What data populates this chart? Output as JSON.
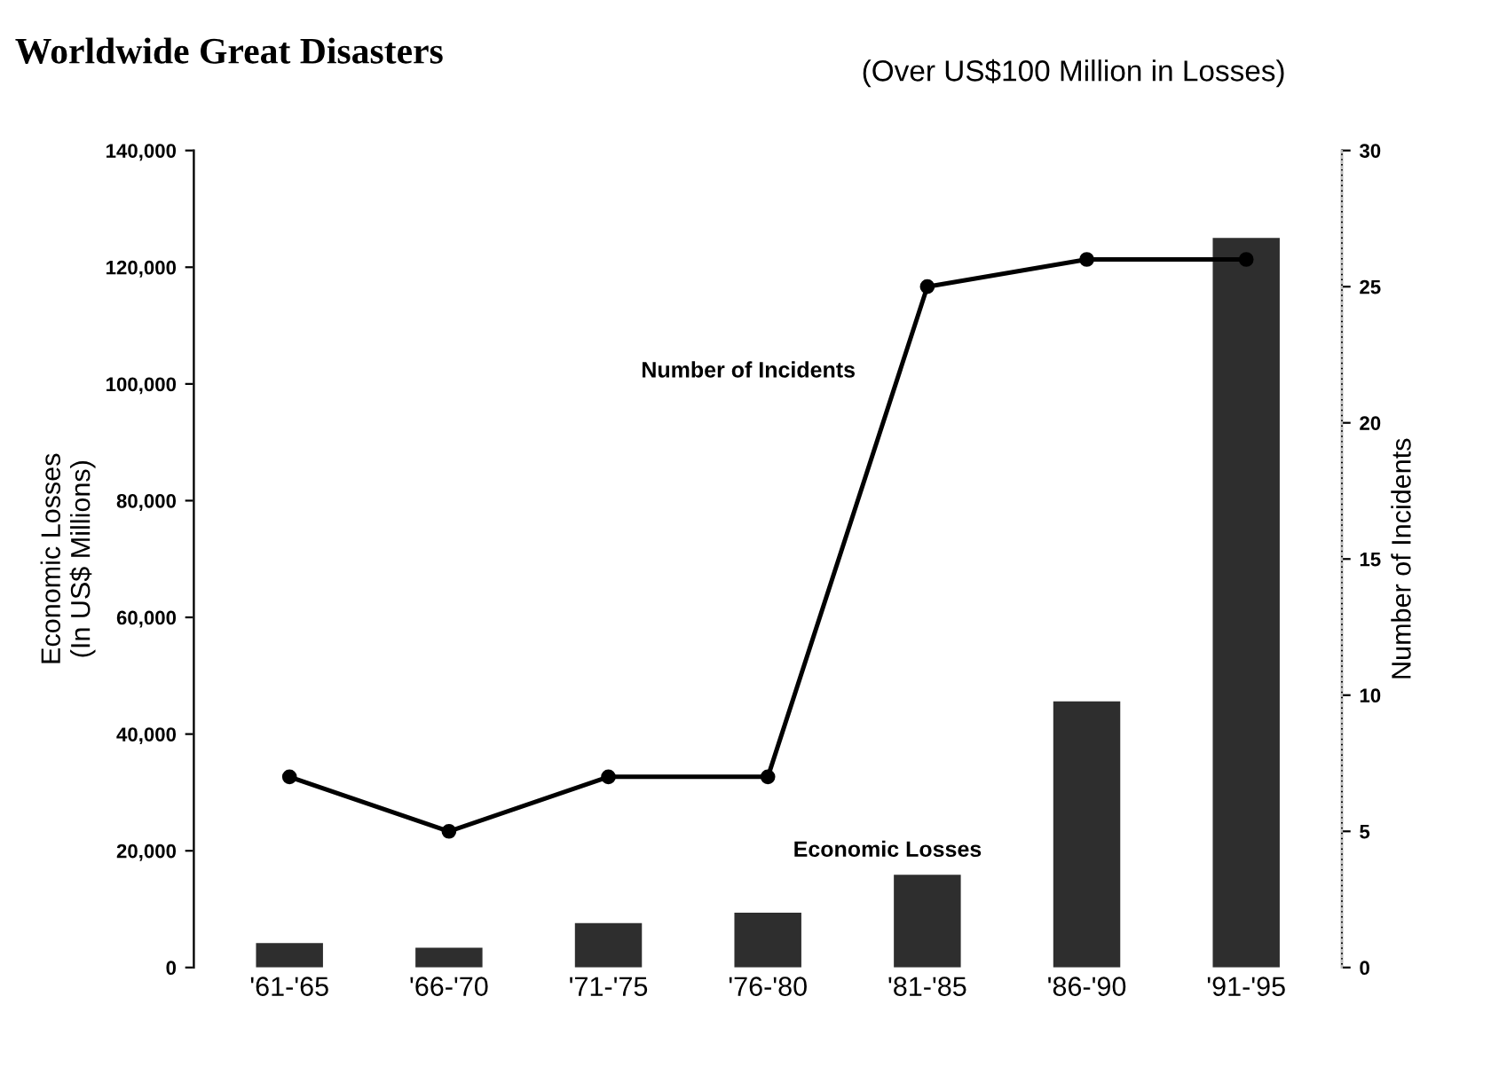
{
  "chart_data": {
    "type": "bar",
    "title": "Worldwide Great Disasters",
    "subtitle": "(Over US$100 Million in Losses)",
    "ylabel": "Economic Losses\n(In US$ Millions)",
    "y2label": "Number of Incidents",
    "categories": [
      "'61-'65",
      "'66-'70",
      "'71-'75",
      "'76-'80",
      "'81-'85",
      "'86-'90",
      "'91-'95"
    ],
    "series": [
      {
        "color": "#2e2e2e",
        "values": [
          4200,
          3400,
          7600,
          9400,
          15900,
          45600,
          125000
        ]
      },
      {
        "type": "line",
        "axis": "y2",
        "color": "#000000",
        "marker": "circle",
        "values": [
          7,
          5,
          7,
          7,
          25,
          26,
          26
        ]
      }
    ],
    "ylim": [
      0,
      140000
    ],
    "yticks": [
      {
        "value": 0,
        "label": "0"
      },
      {
        "value": 20000,
        "label": "20,000"
      },
      {
        "value": 40000,
        "label": "40,000"
      },
      {
        "value": 60000,
        "label": "60,000"
      },
      {
        "value": 80000,
        "label": "80,000"
      },
      {
        "value": 100000,
        "label": "100,000"
      },
      {
        "value": 120000,
        "label": "120,000"
      },
      {
        "value": 140000,
        "label": "140,000"
      }
    ],
    "y2lim": [
      0,
      30
    ],
    "y2ticks": [
      0,
      5,
      10,
      15,
      20,
      25,
      30
    ],
    "annotations": [
      "Number of Incidents",
      "Economic Losses"
    ],
    "grid": false,
    "legend": false
  }
}
